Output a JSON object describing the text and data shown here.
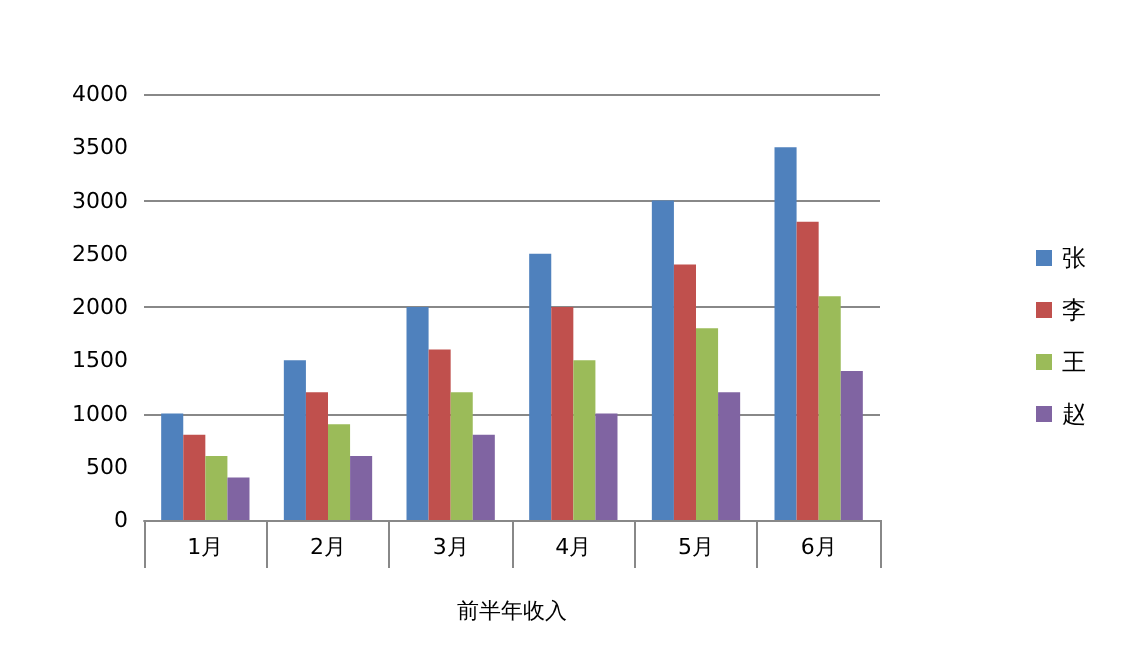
{
  "chart_data": {
    "type": "bar",
    "xlabel": "前半年收入",
    "categories": [
      "1月",
      "2月",
      "3月",
      "4月",
      "5月",
      "6月"
    ],
    "series": [
      {
        "name": "张",
        "color": "#4f81bd",
        "values": [
          1000,
          1500,
          2000,
          2500,
          3000,
          3500
        ]
      },
      {
        "name": "李",
        "color": "#c0504d",
        "values": [
          800,
          1200,
          1600,
          2000,
          2400,
          2800
        ]
      },
      {
        "name": "王",
        "color": "#9bbb59",
        "values": [
          600,
          900,
          1200,
          1500,
          1800,
          2100
        ]
      },
      {
        "name": "赵",
        "color": "#8064a2",
        "values": [
          400,
          600,
          800,
          1000,
          1200,
          1400
        ]
      }
    ],
    "ylim": [
      0,
      4000
    ],
    "yticks": [
      0,
      500,
      1000,
      1500,
      2000,
      2500,
      3000,
      3500,
      4000
    ],
    "grid": "y",
    "legend": "right"
  }
}
